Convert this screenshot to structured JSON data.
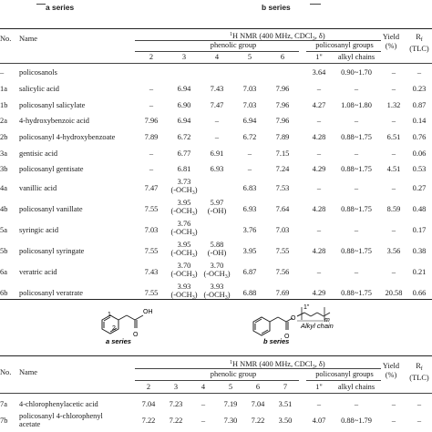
{
  "top_labels": {
    "a_series": "a series",
    "b_series": "b series"
  },
  "table1": {
    "headers": {
      "no": "No.",
      "name": "Name",
      "nmr": "H NMR (400 MHz, CDCl",
      "nmr_sup": "1",
      "nmr_sub": "3",
      "nmr_tail": ", δ)",
      "phenolic": "phenolic group",
      "policosanyl": "policosanyl groups",
      "yield": "Yield",
      "yield_unit": "(%)",
      "rf": "R",
      "rf_sub": "f",
      "rf_unit": "(TLC)",
      "cols": [
        "2",
        "3",
        "4",
        "5",
        "6",
        "1\"",
        "alkyl chains"
      ]
    },
    "rows": [
      {
        "no": "–",
        "name": "policosanols",
        "c2": "",
        "c3": "",
        "c4": "",
        "c5": "",
        "c6": "",
        "p1": "3.64",
        "alk": "0.90~1.70",
        "yield": "–",
        "rf": "–"
      },
      {
        "no": "1a",
        "name": "salicylic acid",
        "c2": "–",
        "c3": "6.94",
        "c4": "7.43",
        "c5": "7.03",
        "c6": "7.96",
        "p1": "–",
        "alk": "–",
        "yield": "–",
        "rf": "0.23"
      },
      {
        "no": "1b",
        "name": "policosanyl salicylate",
        "c2": "–",
        "c3": "6.90",
        "c4": "7.47",
        "c5": "7.03",
        "c6": "7.96",
        "p1": "4.27",
        "alk": "1.08~1.80",
        "yield": "1.32",
        "rf": "0.87"
      },
      {
        "no": "2a",
        "name": "4-hydroxybenzoic acid",
        "c2": "7.96",
        "c3": "6.94",
        "c4": "–",
        "c5": "6.94",
        "c6": "7.96",
        "p1": "–",
        "alk": "–",
        "yield": "–",
        "rf": "0.14"
      },
      {
        "no": "2b",
        "name": "policosanyl 4-hydroxybenzoate",
        "c2": "7.89",
        "c3": "6.72",
        "c4": "–",
        "c5": "6.72",
        "c6": "7.89",
        "p1": "4.28",
        "alk": "0.88~1.75",
        "yield": "6.51",
        "rf": "0.76"
      },
      {
        "no": "3a",
        "name": "gentisic acid",
        "c2": "–",
        "c3": "6.77",
        "c4": "6.91",
        "c5": "–",
        "c6": "7.15",
        "p1": "–",
        "alk": "–",
        "yield": "–",
        "rf": "0.06"
      },
      {
        "no": "3b",
        "name": "policosanyl gentisate",
        "c2": "–",
        "c3": "6.81",
        "c4": "6.93",
        "c5": "–",
        "c6": "7.24",
        "p1": "4.29",
        "alk": "0.88~1.75",
        "yield": "4.51",
        "rf": "0.53"
      },
      {
        "no": "4a",
        "name": "vanillic acid",
        "c2": "7.47",
        "c3": "3.73",
        "c3b": "(-OCH",
        "c3s": "3",
        "c3e": ")",
        "c4": "",
        "c5": "6.83",
        "c6": "7.53",
        "p1": "–",
        "alk": "–",
        "yield": "–",
        "rf": "0.27"
      },
      {
        "no": "4b",
        "name": "policosanyl vanillate",
        "c2": "7.55",
        "c3": "3.95",
        "c3b": "(-OCH",
        "c3s": "3",
        "c3e": ")",
        "c4": "5.97",
        "c4b": "(-OH)",
        "c5": "6.93",
        "c6": "7.64",
        "p1": "4.28",
        "alk": "0.88~1.75",
        "yield": "8.59",
        "rf": "0.48"
      },
      {
        "no": "5a",
        "name": "syringic acid",
        "c2": "7.03",
        "c3": "3.76",
        "c3b": "(-OCH",
        "c3s": "3",
        "c3e": ")",
        "c4": "",
        "c5": "3.76",
        "c6": "7.03",
        "p1": "–",
        "alk": "–",
        "yield": "–",
        "rf": "0.17"
      },
      {
        "no": "5b",
        "name": "policosanyl syringate",
        "c2": "7.55",
        "c3": "3.95",
        "c3b": "(-OCH",
        "c3s": "3",
        "c3e": ")",
        "c4": "5.88",
        "c4b": "(-OH)",
        "c5": "3.95",
        "c6": "7.55",
        "p1": "4.28",
        "alk": "0.88~1.75",
        "yield": "3.56",
        "rf": "0.38"
      },
      {
        "no": "6a",
        "name": "veratric acid",
        "c2": "7.43",
        "c3": "3.70",
        "c3b": "(-OCH",
        "c3s": "3",
        "c3e": ")",
        "c4": "3.70",
        "c4b": "(-OCH",
        "c4s": "3",
        "c4e": ")",
        "c5": "6.87",
        "c6": "7.56",
        "p1": "–",
        "alk": "–",
        "yield": "–",
        "rf": "0.21"
      },
      {
        "no": "6b",
        "name": "policosanyl veratrate",
        "c2": "7.55",
        "c3": "3.93",
        "c3b": "(-OCH",
        "c3s": "3",
        "c3e": ")",
        "c4": "3.93",
        "c4b": "(-OCH",
        "c4s": "3",
        "c4e": ")",
        "c5": "6.88",
        "c6": "7.69",
        "p1": "4.29",
        "alk": "0.88~1.75",
        "yield": "20.58",
        "rf": "0.66"
      }
    ]
  },
  "scheme2": {
    "a_label": "a series",
    "b_label": "b series",
    "oh": "OH",
    "o": "O",
    "o2": "O",
    "n1": "1",
    "n2": "2",
    "n1pp": "1\"",
    "m": "m",
    "alkyl": "Alkyl chain"
  },
  "table2": {
    "headers": {
      "no": "No.",
      "name": "Name",
      "nmr": "H NMR (400 MHz, CDCl",
      "nmr_sup": "1",
      "nmr_sub": "3",
      "nmr_tail": ", δ)",
      "phenolic": "phenolic group",
      "policosanyl": "policosanyl groups",
      "yield": "Yield",
      "yield_unit": "(%)",
      "rf": "R",
      "rf_sub": "f",
      "rf_unit": "(TLC)",
      "cols": [
        "2",
        "3",
        "4",
        "5",
        "6",
        "7",
        "1\"",
        "alkyl chains"
      ]
    },
    "rows": [
      {
        "no": "7a",
        "name": "4-chlorophenylacetic acid",
        "c2": "7.04",
        "c3": "7.23",
        "c4": "–",
        "c5": "7.19",
        "c6": "7.04",
        "c7": "3.51",
        "p1": "–",
        "alk": "–",
        "yield": "–",
        "rf": "–"
      },
      {
        "no": "7b",
        "name": "policosanyl 4-chlorophenyl",
        "name2": "acetate",
        "c2": "7.22",
        "c3": "7.22",
        "c4": "–",
        "c5": "7.30",
        "c6": "7.22",
        "c7": "3.50",
        "p1": "4.07",
        "alk": "0.88~1.79",
        "yield": "–",
        "rf": "–"
      }
    ]
  }
}
